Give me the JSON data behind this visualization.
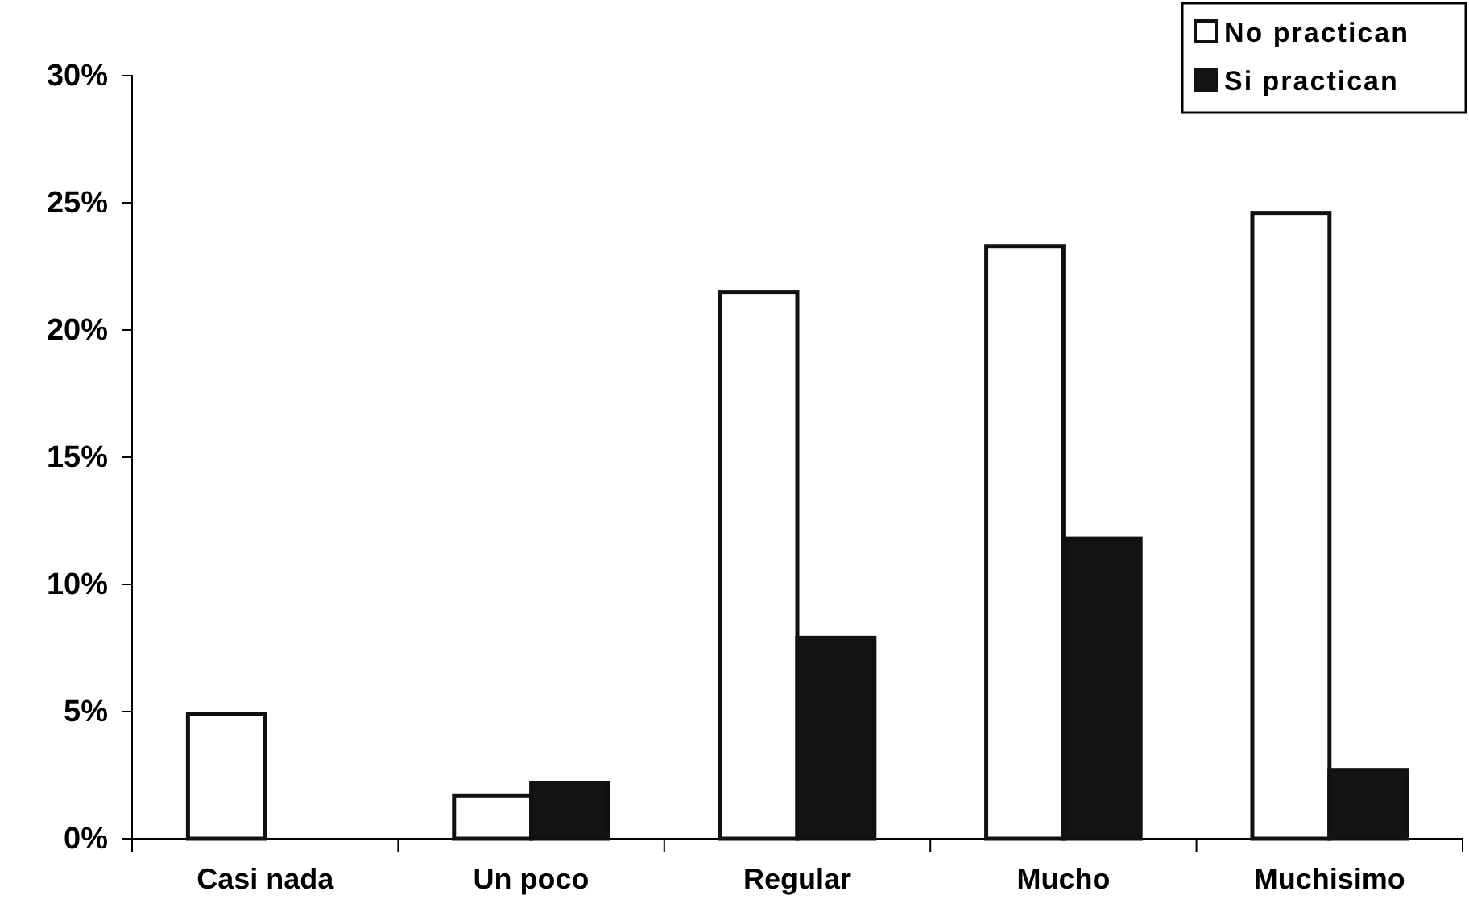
{
  "chart_data": {
    "type": "bar",
    "categories": [
      "Casi nada",
      "Un poco",
      "Regular",
      "Mucho",
      "Muchisimo"
    ],
    "series": [
      {
        "name": "No practican",
        "color": "#ffffff",
        "values": [
          4.9,
          1.7,
          21.5,
          23.3,
          24.6
        ]
      },
      {
        "name": "Si practican",
        "color": "#141414",
        "values": [
          0,
          2.2,
          7.9,
          11.8,
          2.7
        ]
      }
    ],
    "ylim": [
      0,
      30
    ],
    "yticks": [
      {
        "value": 0,
        "label": "0%"
      },
      {
        "value": 5,
        "label": "5%"
      },
      {
        "value": 10,
        "label": "10%"
      },
      {
        "value": 15,
        "label": "15%"
      },
      {
        "value": 20,
        "label": "20%"
      },
      {
        "value": 25,
        "label": "25%"
      },
      {
        "value": 30,
        "label": "30%"
      }
    ],
    "grid": false,
    "legend": "top right"
  }
}
